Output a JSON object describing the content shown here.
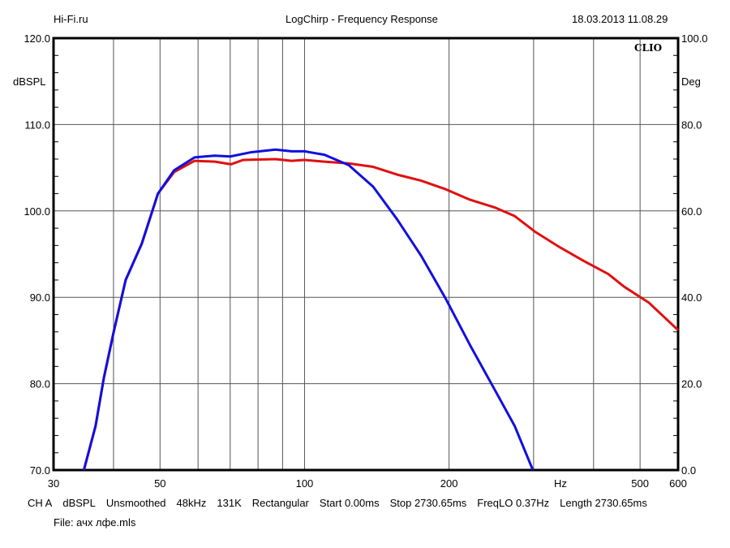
{
  "header": {
    "left": "Hi-Fi.ru",
    "center": "LogChirp - Frequency Response",
    "right": "18.03.2013 11.08.29"
  },
  "logo": "CLIO",
  "footer": {
    "params": [
      "CH A",
      "dBSPL",
      "Unsmoothed",
      "48kHz",
      "131K",
      "Rectangular",
      "Start 0.00ms",
      "Stop 2730.65ms",
      "FreqLO 0.37Hz",
      "Length 2730.65ms"
    ],
    "file": "File: ачх лфе.mls"
  },
  "chart_data": {
    "type": "line",
    "title": "LogChirp - Frequency Response",
    "xlabel": "Hz",
    "ylabel": "dBSPL",
    "y2label": "Deg",
    "xscale": "log",
    "xlim": [
      30,
      600
    ],
    "ylim": [
      70,
      120
    ],
    "y2lim": [
      0,
      100
    ],
    "x_ticks": [
      {
        "v": 30,
        "l": "30"
      },
      {
        "v": 50,
        "l": "50"
      },
      {
        "v": 100,
        "l": "100"
      },
      {
        "v": 200,
        "l": "200"
      },
      {
        "v": 500,
        "l": "500"
      },
      {
        "v": 600,
        "l": "600"
      }
    ],
    "x_grid": [
      40,
      50,
      60,
      70,
      80,
      90,
      100,
      200,
      300,
      400,
      500
    ],
    "y_ticks": [
      "70.0",
      "80.0",
      "90.0",
      "100.0",
      "110.0",
      "120.0"
    ],
    "y2_ticks": [
      "0.0",
      "20.0",
      "40.0",
      "60.0",
      "80.0",
      "100.0"
    ],
    "grid": true,
    "series": [
      {
        "name": "red",
        "color": "#e01010",
        "points": [
          [
            34.7,
            70
          ],
          [
            36.7,
            75.1
          ],
          [
            38.2,
            80.7
          ],
          [
            40,
            85.9
          ],
          [
            42.4,
            92
          ],
          [
            45.8,
            96.2
          ],
          [
            49.5,
            102
          ],
          [
            53.5,
            104.5
          ],
          [
            59,
            105.8
          ],
          [
            65.1,
            105.7
          ],
          [
            70.3,
            105.4
          ],
          [
            74.5,
            105.9
          ],
          [
            87,
            106
          ],
          [
            94,
            105.8
          ],
          [
            100,
            105.9
          ],
          [
            110,
            105.7
          ],
          [
            123.6,
            105.5
          ],
          [
            139,
            105.1
          ],
          [
            156,
            104.2
          ],
          [
            175,
            103.5
          ],
          [
            197,
            102.5
          ],
          [
            221,
            101.3
          ],
          [
            249,
            100.4
          ],
          [
            274,
            99.4
          ],
          [
            302,
            97.6
          ],
          [
            340,
            95.8
          ],
          [
            382,
            94.2
          ],
          [
            429,
            92.7
          ],
          [
            464,
            91.2
          ],
          [
            521,
            89.4
          ],
          [
            600,
            86.2
          ]
        ]
      },
      {
        "name": "blue",
        "color": "#1010e0",
        "points": [
          [
            34.7,
            70
          ],
          [
            36.7,
            75.1
          ],
          [
            38.2,
            80.7
          ],
          [
            40,
            85.9
          ],
          [
            42.4,
            92
          ],
          [
            45.8,
            96.2
          ],
          [
            49.5,
            102
          ],
          [
            53.5,
            104.7
          ],
          [
            59,
            106.2
          ],
          [
            65,
            106.4
          ],
          [
            70,
            106.3
          ],
          [
            77.5,
            106.8
          ],
          [
            87,
            107.1
          ],
          [
            94,
            106.9
          ],
          [
            100,
            106.9
          ],
          [
            110,
            106.5
          ],
          [
            123.6,
            105.3
          ],
          [
            139,
            102.8
          ],
          [
            156,
            99
          ],
          [
            175,
            94.8
          ],
          [
            197,
            89.8
          ],
          [
            221,
            84.5
          ],
          [
            249,
            79.3
          ],
          [
            274,
            75.1
          ],
          [
            299,
            70
          ]
        ]
      }
    ]
  }
}
